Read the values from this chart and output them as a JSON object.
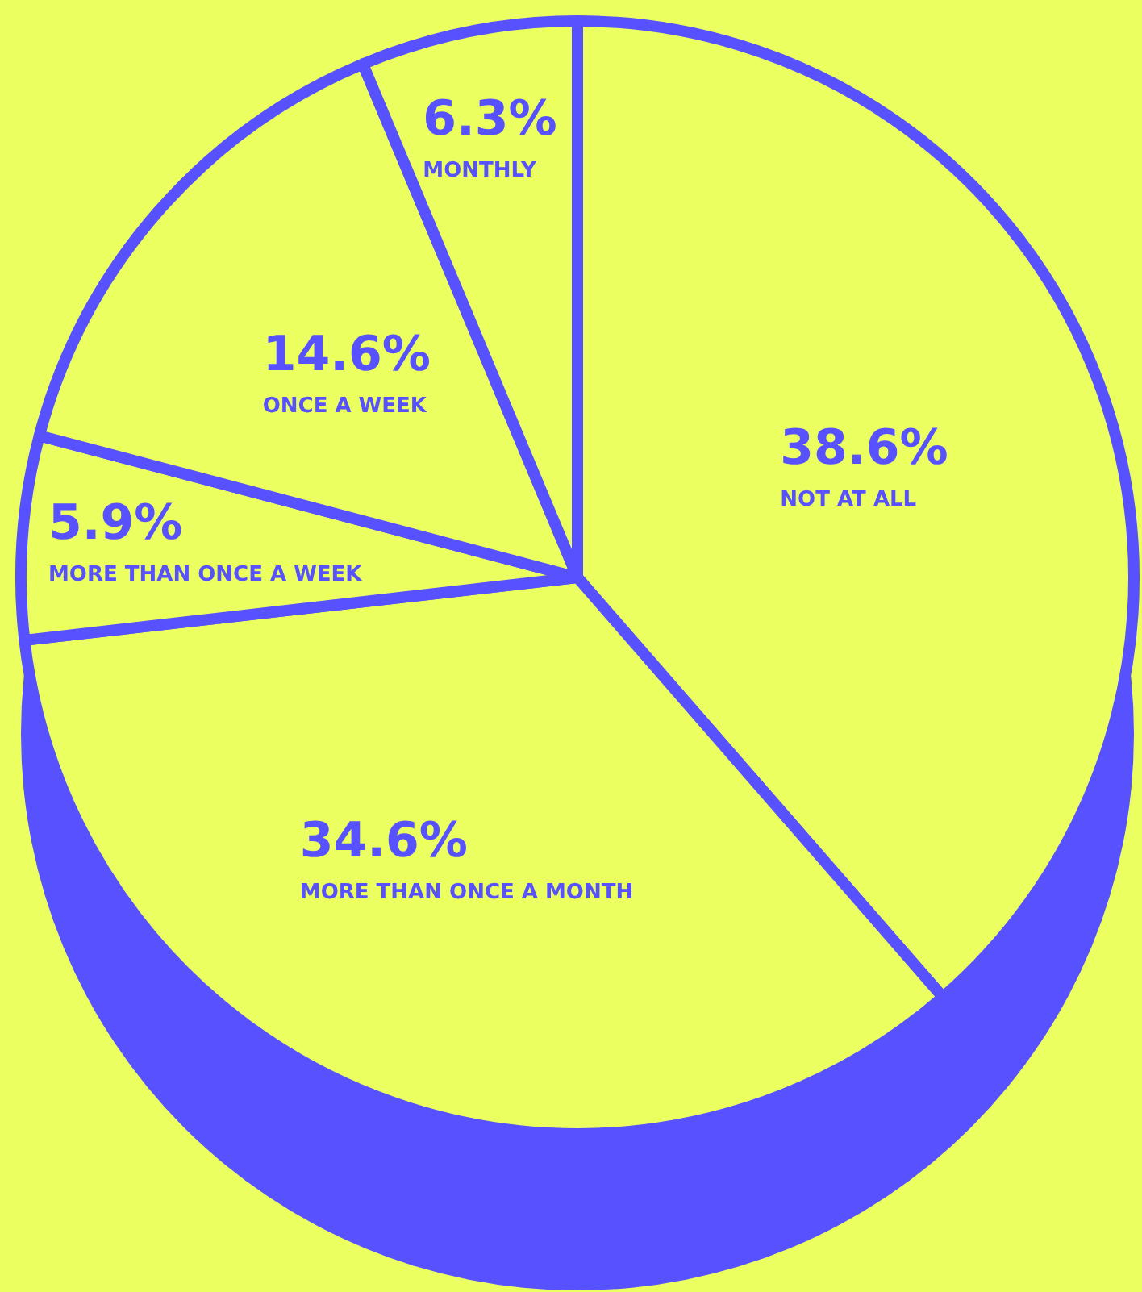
{
  "chart_data": {
    "type": "pie",
    "categories": [
      "NOT AT ALL",
      "MORE THAN ONCE A MONTH",
      "MORE THAN ONCE A WEEK",
      "ONCE A WEEK",
      "MONTHLY"
    ],
    "values": [
      38.6,
      34.6,
      5.9,
      14.6,
      6.3
    ],
    "value_labels": [
      "38.6%",
      "34.6%",
      "5.9%",
      "14.6%",
      "6.3%"
    ],
    "colors": [
      "#ebff60",
      "#ebff60",
      "#ebff60",
      "#ebff60",
      "#ebff60"
    ],
    "legend": false
  }
}
